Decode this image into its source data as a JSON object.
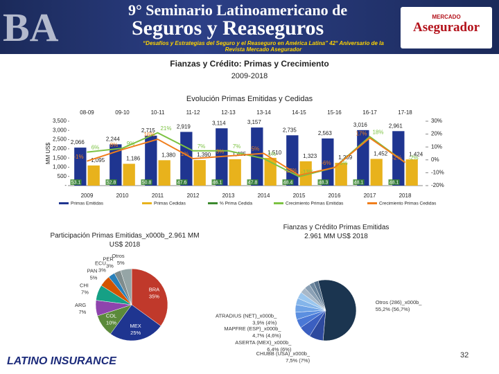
{
  "header": {
    "event": "9° Seminario Latinoamericano de",
    "event_name": "Seguros y Reaseguros",
    "tagline": "“Desafíos y Estrategias del Seguro y el Reaseguro en América Latina” 42° Aniversario de la Revista Mercado Asegurador",
    "place": "BA",
    "logo_top": "MERCADO",
    "logo_main": "Asegurador"
  },
  "title": "Fianzas y Crédito: Primas y Crecimiento",
  "subtitle": "2009-2018",
  "footer": {
    "logo": "LATINO INSURANCE",
    "page": "32"
  },
  "chart_data": [
    {
      "type": "combo",
      "title": "Evolución Primas Emitidas y Cedidas",
      "y_label": "MM US$",
      "categories": [
        "2009",
        "2010",
        "2011",
        "2012",
        "2013",
        "2014",
        "2015",
        "2016",
        "2017",
        "2018"
      ],
      "periods": [
        "08-09",
        "09-10",
        "10-11",
        "11-12",
        "12-13",
        "13-14",
        "14-15",
        "15-16",
        "16-17",
        "17-18"
      ],
      "ylim": [
        0,
        3500
      ],
      "yticks": [
        {
          "value": 0,
          "label": "-"
        },
        500,
        {
          "value": 1000,
          "label": "1,000"
        },
        {
          "value": 1500,
          "label": "1,500"
        },
        {
          "value": 2000,
          "label": "2,000"
        },
        {
          "value": 2500,
          "label": "2,500"
        },
        {
          "value": 3000,
          "label": "3,000"
        },
        {
          "value": 3500,
          "label": "3,500"
        }
      ],
      "y2lim": [
        -20,
        30
      ],
      "y2ticks": [
        {
          "value": -20,
          "label": "-20%"
        },
        {
          "value": -10,
          "label": "-10%"
        },
        {
          "value": 0,
          "label": "0%"
        },
        {
          "value": 10,
          "label": "10%"
        },
        {
          "value": 20,
          "label": "20%"
        },
        {
          "value": 30,
          "label": "30%"
        }
      ],
      "series": [
        {
          "name": "Primas Emitidas",
          "kind": "bar",
          "color": "#1f3590",
          "values": [
            2066,
            2244,
            2715,
            2919,
            3114,
            3157,
            2735,
            2563,
            3016,
            2961
          ],
          "value_labels": [
            "2,066",
            "2,244",
            "2,715",
            "2,919",
            "3,114",
            "3,157",
            "2,735",
            "2,563",
            "3,016",
            "2,961"
          ]
        },
        {
          "name": "Primas Cedidas",
          "kind": "bar",
          "color": "#e8b21c",
          "values": [
            1095,
            1186,
            1380,
            1390,
            1435,
            1510,
            1323,
            1239,
            1452,
            1424
          ],
          "value_labels": [
            "1,095",
            "1,186",
            "1,380",
            "1,390",
            "1,435",
            "1,510",
            "1,323",
            "1,239",
            "1,452",
            "1,424"
          ]
        },
        {
          "name": "% Prima Cedida",
          "kind": "label",
          "color": "#3c8a2e",
          "values": [
            53.1,
            52.8,
            50.8,
            47.6,
            46.1,
            47.8,
            48.4,
            48.3,
            48.1,
            48.1
          ]
        },
        {
          "name": "Crecimiento Primas Emitidas",
          "kind": "line",
          "axis": "y2",
          "color": "#7cc242",
          "values": [
            6,
            9,
            21,
            7,
            7,
            1,
            -13,
            -6,
            18,
            -2
          ],
          "value_labels": [
            "6%",
            "9%",
            "21%",
            "7%",
            "7%",
            "1%",
            "-13%",
            "-6%",
            "18%",
            "-2%"
          ]
        },
        {
          "name": "Crecimiento Primas Cedidas",
          "kind": "line",
          "axis": "y2",
          "color": "#f07e1c",
          "values": [
            -1,
            8,
            16,
            1,
            3,
            5,
            -12,
            -6,
            17,
            -2
          ],
          "value_labels": [
            "-1%",
            "8%",
            "16%",
            "1%",
            "3%",
            "5%",
            "-12%",
            "-6%",
            "17%",
            "-2%"
          ]
        }
      ]
    },
    {
      "type": "pie",
      "title": "Participación Primas Emitidas_x000b_2.961 MM US$  2018",
      "categories": [
        "BRA",
        "MEX",
        "COL",
        "ARG",
        "CHI",
        "PAN",
        "ECU",
        "PER",
        "Otros"
      ],
      "values": [
        35,
        25,
        10,
        7,
        7,
        5,
        3,
        3,
        5
      ],
      "value_labels": [
        "35%",
        "25%",
        "10%",
        "7%",
        "7%",
        "5%",
        "3%",
        "3%",
        "5%"
      ],
      "colors": [
        "#c0392b",
        "#1f3590",
        "#5b8a3a",
        "#8e44ad",
        "#16a085",
        "#d35400",
        "#2980b9",
        "#7f8c8d",
        "#95a5a6"
      ]
    },
    {
      "type": "pie",
      "title": "Fianzas y Crédito Primas Emitidas 2.961 MM US$ 2018",
      "categories": [
        "CHUBB (USA)_x000b_",
        "ASERTA (MEX)_x000b_",
        "MAPFRE (ESP)_x000b_",
        "ATRADIUS (NET)_x000b_",
        null,
        null,
        null,
        null,
        null,
        null,
        null,
        "Otros (286)_x000b_"
      ],
      "values": [
        7.5,
        6.4,
        4.7,
        3.9,
        4,
        3.5,
        3.5,
        3,
        3,
        2.5,
        2.5,
        55.2
      ],
      "value_labels": [
        "7,5% (7%)",
        "6,4% (6%)",
        "4,7% (4,6%)",
        "3,9% (4%)",
        null,
        null,
        null,
        null,
        null,
        null,
        null,
        "55,2% (56,7%)"
      ],
      "colors": [
        "#2e4a9e",
        "#3b5fc0",
        "#4a78d6",
        "#5b8fe0",
        "#6fa3e6",
        "#84b5ea",
        "#9ac6ee",
        "#a8b8c8",
        "#8aa0b5",
        "#6d879e",
        "#55708a",
        "#1b3550"
      ]
    }
  ]
}
